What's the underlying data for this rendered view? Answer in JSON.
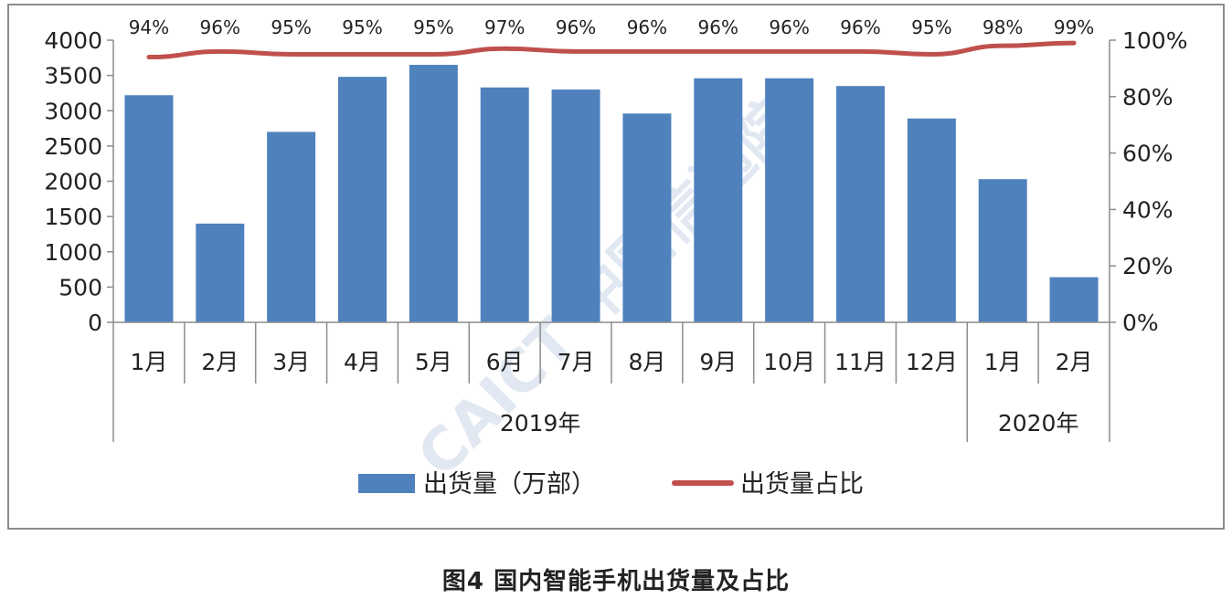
{
  "caption": "图4  国内智能手机出货量及占比",
  "watermark": "CAICT 中国信通院",
  "colors": {
    "bar": "#4f81bd",
    "line": "#c0504d",
    "axis": "#8c8c8c",
    "text": "#222222"
  },
  "chart_data": {
    "type": "bar",
    "categories": [
      "1月",
      "2月",
      "3月",
      "4月",
      "5月",
      "6月",
      "7月",
      "8月",
      "9月",
      "10月",
      "11月",
      "12月",
      "1月",
      "2月"
    ],
    "groups": [
      {
        "label": "2019年",
        "count": 12
      },
      {
        "label": "2020年",
        "count": 2
      }
    ],
    "series": [
      {
        "name": "出货量（万部）",
        "type": "bar",
        "axis": "left",
        "values": [
          3220,
          1400,
          2700,
          3480,
          3650,
          3330,
          3300,
          2960,
          3460,
          3460,
          3350,
          2890,
          2030,
          640
        ]
      },
      {
        "name": "出货量占比",
        "type": "line",
        "axis": "right",
        "values": [
          94,
          96,
          95,
          95,
          95,
          97,
          96,
          96,
          96,
          96,
          96,
          95,
          98,
          99
        ],
        "labels": [
          "94%",
          "96%",
          "95%",
          "95%",
          "95%",
          "97%",
          "96%",
          "96%",
          "96%",
          "96%",
          "96%",
          "95%",
          "98%",
          "99%"
        ]
      }
    ],
    "y_left": {
      "min": 0,
      "max": 4000,
      "step": 500,
      "ticks": [
        "0",
        "500",
        "1000",
        "1500",
        "2000",
        "2500",
        "3000",
        "3500",
        "4000"
      ]
    },
    "y_right": {
      "min": 0,
      "max": 100,
      "step": 20,
      "ticks": [
        "0%",
        "20%",
        "40%",
        "60%",
        "80%",
        "100%"
      ]
    },
    "grid": false,
    "legend": {
      "position": "bottom",
      "items": [
        {
          "label": "出货量（万部）",
          "kind": "bar"
        },
        {
          "label": "出货量占比",
          "kind": "line"
        }
      ]
    }
  }
}
